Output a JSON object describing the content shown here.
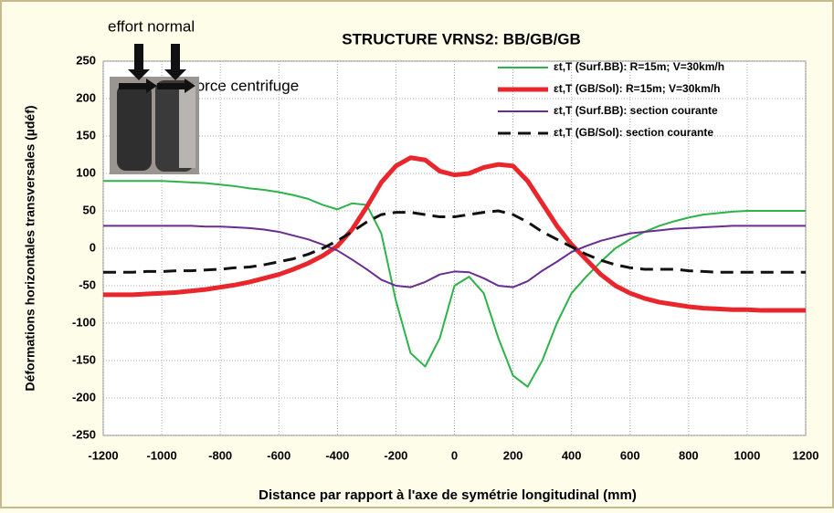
{
  "chart_data": {
    "type": "line",
    "title": "STRUCTURE VRNS2: BB/GB/GB",
    "xlabel": "Distance par rapport à l'axe de symétrie longitudinal (mm)",
    "ylabel": "Déformations horizontales  transversales  (µdéf)",
    "annotations": [
      "effort normal",
      "force centrifuge"
    ],
    "x": [
      -1200,
      -1150,
      -1100,
      -1050,
      -1000,
      -950,
      -900,
      -850,
      -800,
      -750,
      -700,
      -650,
      -600,
      -550,
      -500,
      -450,
      -400,
      -350,
      -300,
      -250,
      -200,
      -150,
      -100,
      -50,
      0,
      50,
      100,
      150,
      200,
      250,
      300,
      350,
      400,
      450,
      500,
      550,
      600,
      650,
      700,
      750,
      800,
      850,
      900,
      950,
      1000,
      1050,
      1100,
      1150,
      1200
    ],
    "series": [
      {
        "name": "εt,T (Surf.BB): R=15m; V=30km/h",
        "color": "#2db34a",
        "width": 2,
        "dash": false,
        "values": [
          90,
          90,
          90,
          90,
          90,
          89,
          88,
          87,
          85,
          83,
          80,
          78,
          75,
          71,
          66,
          58,
          52,
          60,
          58,
          20,
          -70,
          -140,
          -158,
          -120,
          -50,
          -38,
          -60,
          -120,
          -170,
          -185,
          -150,
          -100,
          -60,
          -38,
          -18,
          0,
          12,
          22,
          30,
          36,
          41,
          45,
          47,
          49,
          50,
          50,
          50,
          50,
          50
        ]
      },
      {
        "name": "εt,T (GB/Sol): R=15m; V=30km/h",
        "color": "#e8262b",
        "width": 5,
        "dash": false,
        "values": [
          -62,
          -62,
          -62,
          -61,
          -60,
          -59,
          -57,
          -55,
          -52,
          -49,
          -45,
          -40,
          -35,
          -28,
          -20,
          -10,
          3,
          25,
          55,
          88,
          110,
          121,
          118,
          103,
          98,
          100,
          108,
          112,
          110,
          90,
          60,
          30,
          5,
          -15,
          -35,
          -50,
          -60,
          -67,
          -72,
          -75,
          -78,
          -80,
          -81,
          -82,
          -82,
          -83,
          -83,
          -83,
          -83
        ]
      },
      {
        "name": "εt,T (Surf.BB): section courante",
        "color": "#6a2c91",
        "width": 2,
        "dash": false,
        "values": [
          30,
          30,
          30,
          30,
          30,
          30,
          30,
          29,
          29,
          28,
          27,
          25,
          22,
          17,
          12,
          5,
          -3,
          -15,
          -28,
          -42,
          -50,
          -52,
          -45,
          -35,
          -31,
          -32,
          -40,
          -50,
          -52,
          -44,
          -30,
          -18,
          -5,
          3,
          10,
          15,
          20,
          22,
          24,
          26,
          27,
          28,
          29,
          30,
          30,
          30,
          30,
          30,
          30
        ]
      },
      {
        "name": "εt,T (GB/Sol): section courante",
        "color": "#111111",
        "width": 3,
        "dash": true,
        "values": [
          -32,
          -32,
          -32,
          -31,
          -31,
          -30,
          -30,
          -29,
          -28,
          -26,
          -25,
          -22,
          -18,
          -14,
          -8,
          0,
          10,
          22,
          35,
          45,
          48,
          48,
          45,
          42,
          42,
          45,
          48,
          50,
          45,
          35,
          22,
          12,
          2,
          -8,
          -16,
          -22,
          -26,
          -28,
          -28,
          -28,
          -30,
          -31,
          -32,
          -32,
          -32,
          -32,
          -32,
          -32,
          -32
        ]
      }
    ],
    "xlim": [
      -1200,
      1200
    ],
    "ylim": [
      -250,
      250
    ],
    "xticks": [
      -1200,
      -1000,
      -800,
      -600,
      -400,
      -200,
      0,
      200,
      400,
      600,
      800,
      1000,
      1200
    ],
    "yticks": [
      -250,
      -200,
      -150,
      -100,
      -50,
      0,
      50,
      100,
      150,
      200,
      250
    ],
    "grid": true,
    "legend": "upper right"
  }
}
